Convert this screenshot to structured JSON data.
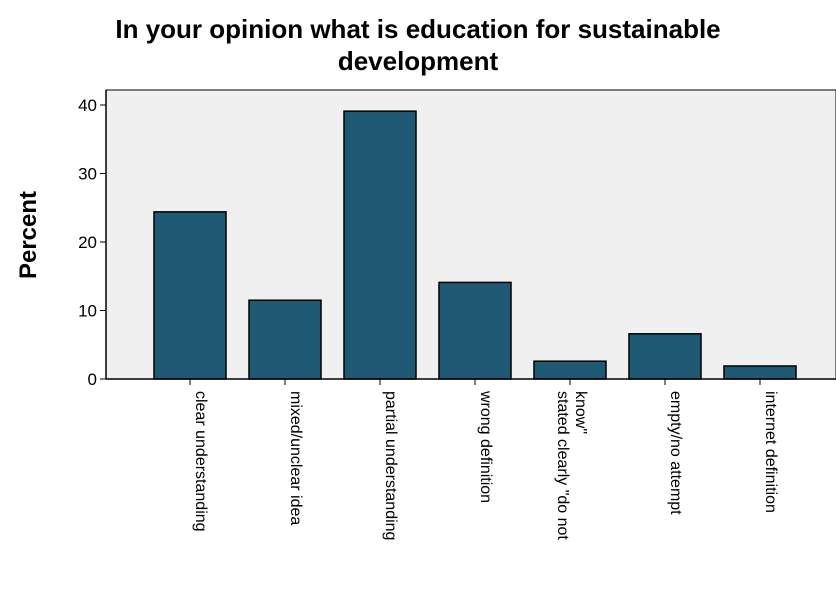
{
  "chart_data": {
    "type": "bar",
    "title_lines": [
      "In your opinion what is education for sustainable",
      "development"
    ],
    "ylabel": "Percent",
    "xlabel": "",
    "ylim": [
      0,
      40
    ],
    "yticks": [
      0,
      10,
      20,
      30,
      40
    ],
    "grid": false,
    "categories": [
      [
        "clear understanding"
      ],
      [
        "mixed/unclear idea"
      ],
      [
        "partial understanding"
      ],
      [
        "wrong definition"
      ],
      [
        "stated clearly \"do not",
        "know\""
      ],
      [
        "empty/no attempt"
      ],
      [
        "internet definition"
      ]
    ],
    "values": [
      24.4,
      11.5,
      39.1,
      14.1,
      2.6,
      6.6,
      1.9
    ],
    "colors": {
      "bar_fill": "#1f5a75",
      "bar_stroke": "#000000",
      "plot_background": "#f0f0f0",
      "axis": "#000000"
    }
  }
}
